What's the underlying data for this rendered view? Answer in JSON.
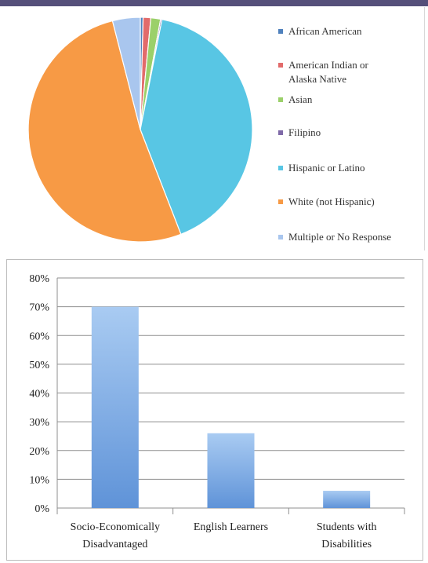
{
  "colors": {
    "top_band": "#55507a",
    "bar_fill_top": "#a9cbf2",
    "bar_fill_bottom": "#5f93d8",
    "gridline": "#8f8f8f"
  },
  "chart_data": [
    {
      "type": "pie",
      "slices": [
        {
          "label": "African American",
          "value": 0.4,
          "color": "#4f81bd"
        },
        {
          "label": "American Indian or Alaska Native",
          "value": 1.1,
          "color": "#e26b6b"
        },
        {
          "label": "Asian",
          "value": 1.4,
          "color": "#9bd06a"
        },
        {
          "label": "Filipino",
          "value": 0.2,
          "color": "#7f6aa8"
        },
        {
          "label": "Hispanic or Latino",
          "value": 41.0,
          "color": "#58c6e4"
        },
        {
          "label": "White (not Hispanic)",
          "value": 51.9,
          "color": "#f79a45"
        },
        {
          "label": "Multiple or No Response",
          "value": 4.0,
          "color": "#a9c6ee"
        }
      ],
      "legend": {
        "placement": "right",
        "items": [
          {
            "label_lines": [
              "African American"
            ],
            "color": "#4f81bd"
          },
          {
            "label_lines": [
              "American Indian or",
              "Alaska Native"
            ],
            "color": "#e26b6b"
          },
          {
            "label_lines": [
              "Asian"
            ],
            "color": "#9bd06a"
          },
          {
            "label_lines": [
              "Filipino"
            ],
            "color": "#7f6aa8"
          },
          {
            "label_lines": [
              "Hispanic or Latino"
            ],
            "color": "#58c6e4"
          },
          {
            "label_lines": [
              "White (not Hispanic)"
            ],
            "color": "#f79a45"
          },
          {
            "label_lines": [
              "Multiple or No Response"
            ],
            "color": "#a9c6ee"
          }
        ]
      }
    },
    {
      "type": "bar",
      "categories": [
        [
          "Socio-Economically",
          "Disadvantaged"
        ],
        [
          "English Learners"
        ],
        [
          "Students with",
          "Disabilities"
        ]
      ],
      "values": [
        0.7,
        0.26,
        0.06
      ],
      "ylim": [
        0,
        0.8
      ],
      "yticks": [
        "0%",
        "10%",
        "20%",
        "30%",
        "40%",
        "50%",
        "60%",
        "70%",
        "80%"
      ],
      "grid": true
    }
  ]
}
